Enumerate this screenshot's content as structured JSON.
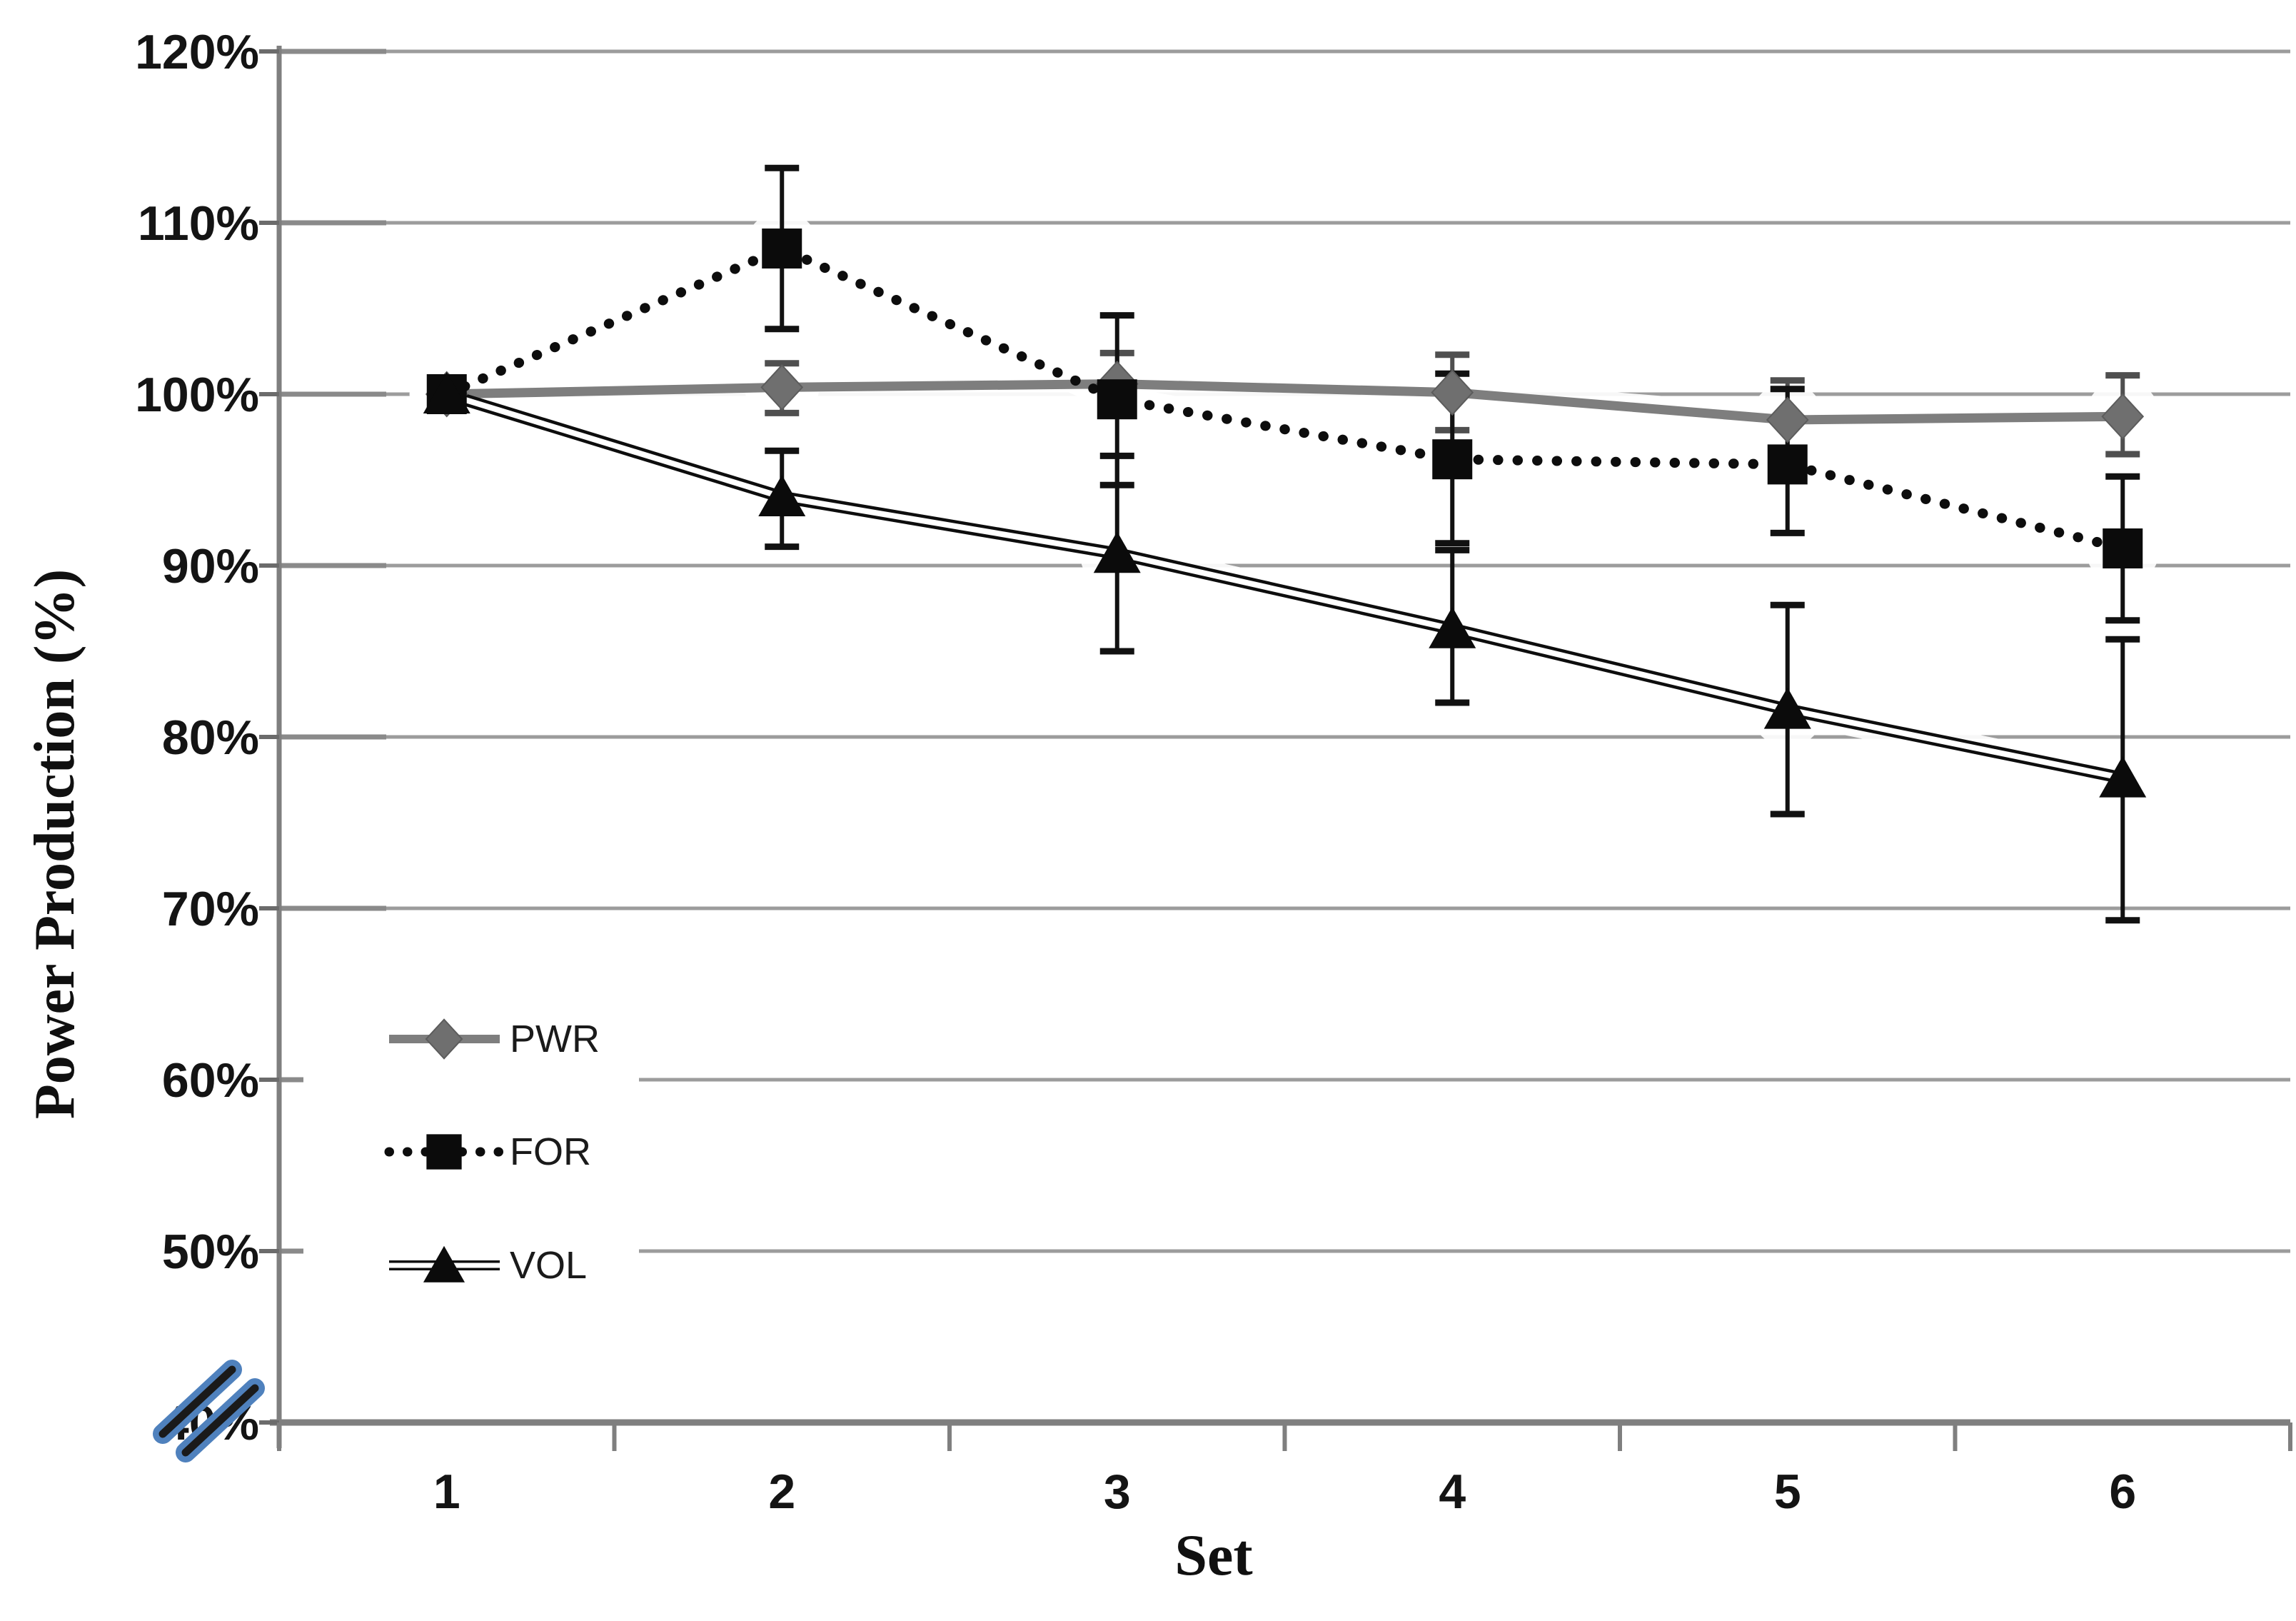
{
  "figure": {
    "x_axis_title": "Set",
    "y_axis_title": "Power Production (%)"
  },
  "chart_data": {
    "type": "line",
    "title": "",
    "xlabel": "Set",
    "ylabel": "Power Production (%)",
    "categories": [
      "1",
      "2",
      "3",
      "4",
      "5",
      "6"
    ],
    "y_axis": {
      "tick_labels": [
        "120%",
        "110%",
        "100%",
        "90%",
        "80%",
        "70%",
        "60%",
        "50%",
        "40%"
      ],
      "tick_values": [
        120,
        110,
        100,
        90,
        80,
        70,
        60,
        50,
        40
      ],
      "range": [
        40,
        120
      ],
      "unit": "%",
      "axis_break_above_40": true
    },
    "grid": "horizontal",
    "legend_position": "inside-lower-left",
    "series": [
      {
        "name": "PWR",
        "marker": "diamond",
        "line_style": "solid",
        "color": "#7e7e7e",
        "marker_color": "#6f6f6f",
        "error_color": "#4f4f4f",
        "values": [
          100.0,
          100.4,
          100.6,
          100.1,
          98.5,
          98.7
        ],
        "err_low": [
          null,
          98.9,
          98.8,
          97.9,
          96.4,
          96.5
        ],
        "err_high": [
          null,
          101.8,
          102.4,
          102.3,
          100.8,
          101.1
        ]
      },
      {
        "name": "FOR",
        "marker": "square",
        "line_style": "dotted",
        "color": "#0d0d0d",
        "marker_color": "#0b0b0b",
        "error_color": "#111111",
        "values": [
          100.0,
          108.5,
          99.7,
          96.2,
          95.9,
          91.0
        ],
        "err_low": [
          null,
          103.8,
          94.7,
          91.3,
          91.9,
          86.8
        ],
        "err_high": [
          null,
          113.2,
          104.6,
          101.2,
          100.3,
          95.2
        ]
      },
      {
        "name": "VOL",
        "marker": "triangle",
        "line_style": "double",
        "color": "#0d0d0d",
        "marker_color": "#0b0b0b",
        "error_color": "#111111",
        "values": [
          100.0,
          94.0,
          90.7,
          86.3,
          81.6,
          77.6
        ],
        "err_low": [
          null,
          91.1,
          85.0,
          82.0,
          75.5,
          69.3
        ],
        "err_high": [
          null,
          96.7,
          96.4,
          90.9,
          87.7,
          85.7
        ]
      }
    ]
  },
  "style": {
    "gridline_color": "#9c9c9c",
    "axis_color": "#7f7f7f",
    "tick_color": "#6b6b6b",
    "text_color": "#141414",
    "legend_text_color": "#1a1a1a",
    "halo_color": "#ffffff",
    "break_outline_color": "#4f81bd",
    "break_core_color": "#1a1a1a",
    "background": "#ffffff"
  }
}
